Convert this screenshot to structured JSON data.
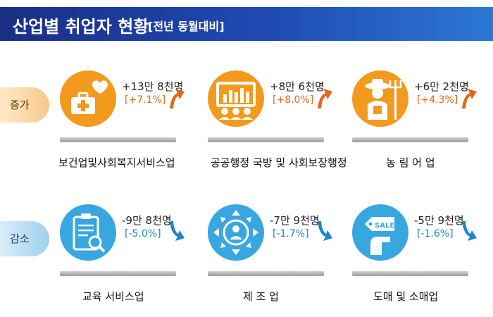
{
  "header": {
    "title": "산업별 취업자 현황",
    "subtitle": "[전년 동월대비]"
  },
  "tabs": {
    "increase": "증가",
    "decrease": "감소"
  },
  "colors": {
    "increase": "#f39a1e",
    "decrease": "#38a7e0",
    "increase_text": "#e4661a",
    "decrease_text": "#1e86c9"
  },
  "increase": [
    {
      "value": "+13만 8천명",
      "percent": "[+7.1%]",
      "label": "보건업및사회복지서비스업",
      "icon": "medical-kit-heart-icon"
    },
    {
      "value": "+8만 6천명",
      "percent": "[+8.0%]",
      "label": "공공행정 국방 및 사회보장행정",
      "icon": "presentation-board-people-icon"
    },
    {
      "value": "+6만 2천명",
      "percent": "[+4.3%]",
      "label": "농 림 어 업",
      "icon": "farmer-pitchfork-icon"
    }
  ],
  "decrease": [
    {
      "value": "-9만 8천명",
      "percent": "[-5.0%]",
      "label": "교육 서비스업",
      "icon": "clipboard-magnifier-icon"
    },
    {
      "value": "-7만 9천명",
      "percent": "[-1.7%]",
      "label": "제 조 업",
      "icon": "gear-person-arrows-icon"
    },
    {
      "value": "-5만 9천명",
      "percent": "[-1.6%]",
      "label": "도매 및 소매업",
      "icon": "sale-tag-hand-icon"
    }
  ],
  "icon_text": {
    "sale": "SALE"
  }
}
